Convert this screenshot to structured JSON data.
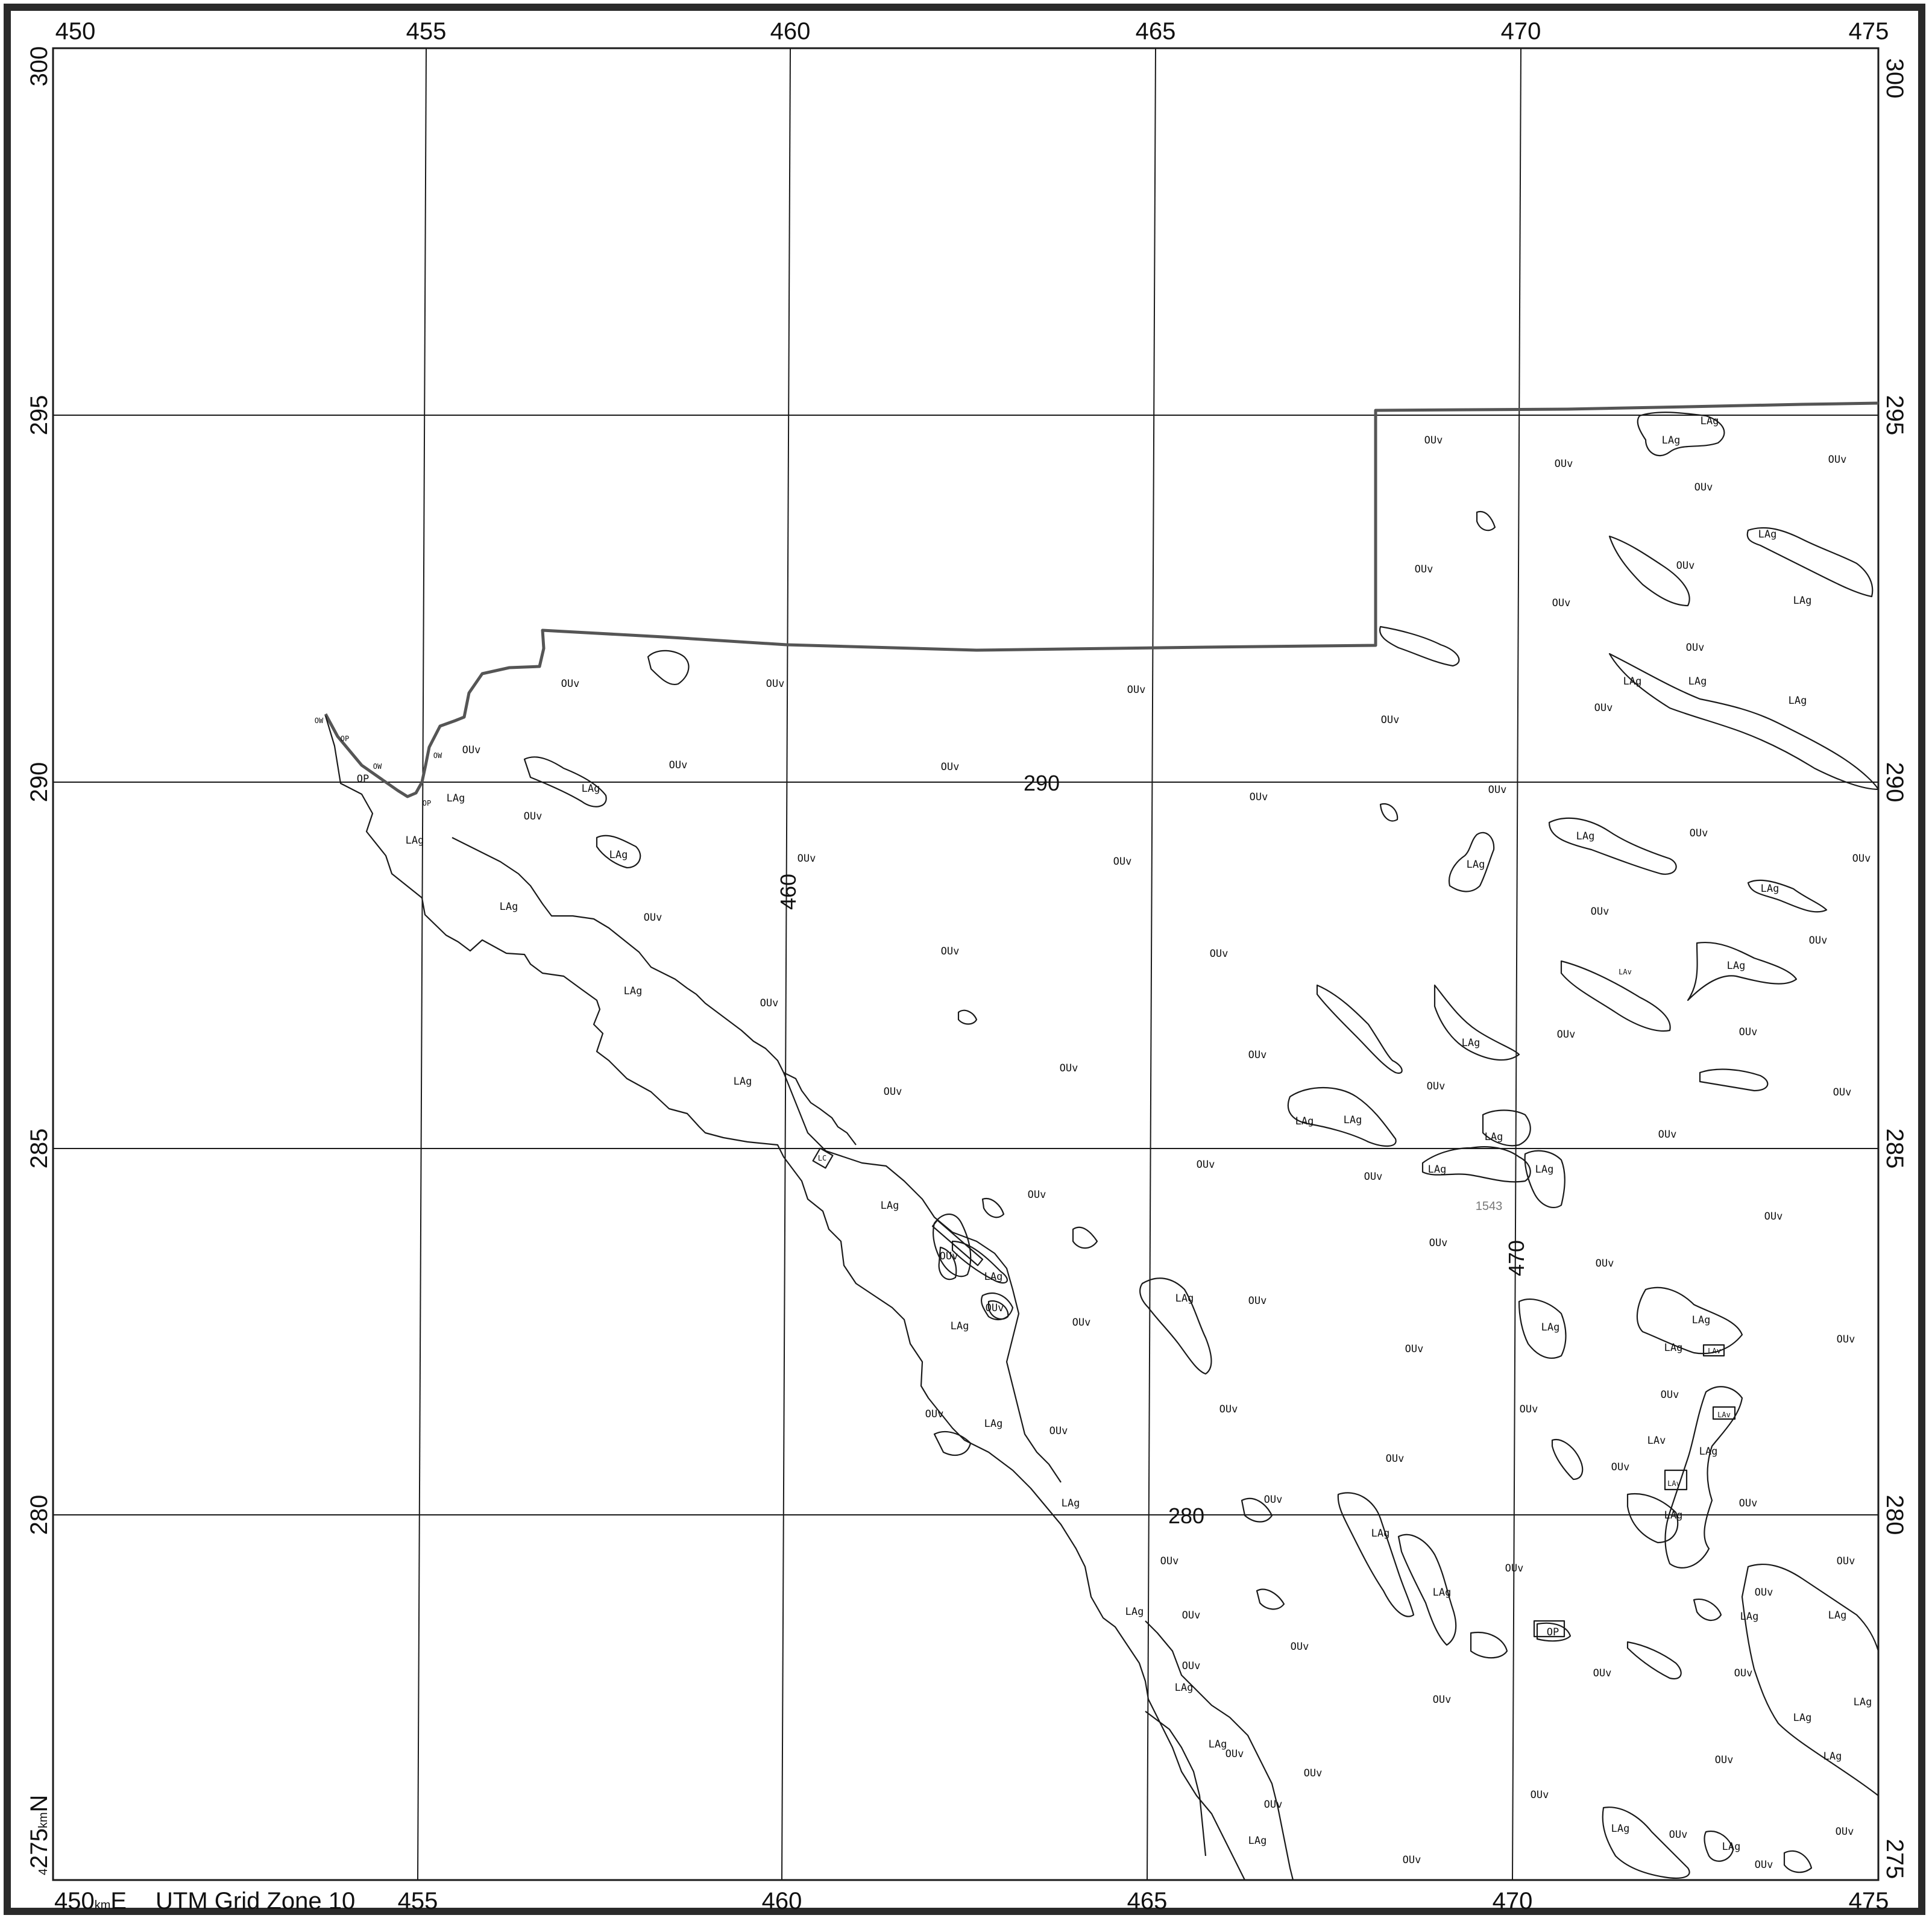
{
  "map": {
    "grid_zone_label": "UTM Grid Zone 10",
    "corner_easting": "450",
    "corner_easting_unit": "km",
    "corner_easting_suffix": "E",
    "corner_northing_prefix": "4",
    "corner_northing": "275",
    "corner_northing_unit": "km",
    "corner_northing_suffix": "N"
  },
  "eastings_top": [
    "450",
    "455",
    "460",
    "465",
    "470",
    "475"
  ],
  "eastings_bottom": [
    "455",
    "460",
    "465",
    "470",
    "475"
  ],
  "northings_left": [
    "300",
    "295",
    "290",
    "285",
    "280"
  ],
  "northings_right": [
    "300",
    "295",
    "290",
    "285",
    "280",
    "275"
  ],
  "interior_labels": {
    "northing_290": "290",
    "northing_280": "280",
    "easting_460": "460",
    "easting_470": "470"
  },
  "reference_number": "1543",
  "units": {
    "ouv": "OUv",
    "lag": "LAg",
    "lav": "LAv",
    "op": "OP",
    "ow": "OW",
    "lc": "LC"
  },
  "colors": {
    "line": "#1a1a1a",
    "boundary": "#555555",
    "background": "#ffffff"
  }
}
